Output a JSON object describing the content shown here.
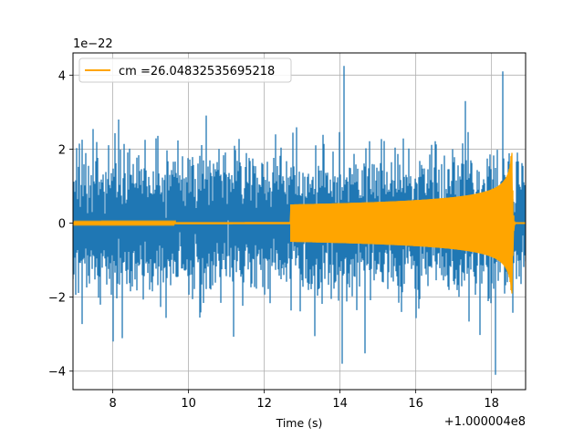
{
  "chart_data": {
    "type": "line",
    "title": "",
    "xlabel": "Time (s)",
    "ylabel": "",
    "x_offset_label": "+1.000004e8",
    "y_scale_label": "1e−22",
    "xlim": [
      6.95,
      18.9
    ],
    "ylim": [
      -4.5,
      4.6
    ],
    "x_ticks": [
      8,
      10,
      12,
      14,
      16,
      18
    ],
    "x_tick_labels": [
      "8",
      "10",
      "12",
      "14",
      "16",
      "18"
    ],
    "y_ticks": [
      -4,
      -2,
      0,
      2,
      4
    ],
    "y_tick_labels": [
      "−4",
      "−2",
      "0",
      "2",
      "4"
    ],
    "grid": true,
    "legend_position": "top-left",
    "series": [
      {
        "kind": "noise",
        "color": "#1f77b4",
        "x_range": [
          6.95,
          18.9
        ],
        "typical_amplitude": [
          -1.8,
          2.0
        ],
        "peak_min": -4.1,
        "peak_max": 4.25
      },
      {
        "kind": "chirp",
        "name": "cm =26.04832535695218",
        "color": "#ffa500",
        "x_range": [
          6.95,
          18.9
        ],
        "merger_time": 18.55,
        "peak_amplitude": 1.9,
        "start_visible_time": 12.7
      }
    ]
  }
}
